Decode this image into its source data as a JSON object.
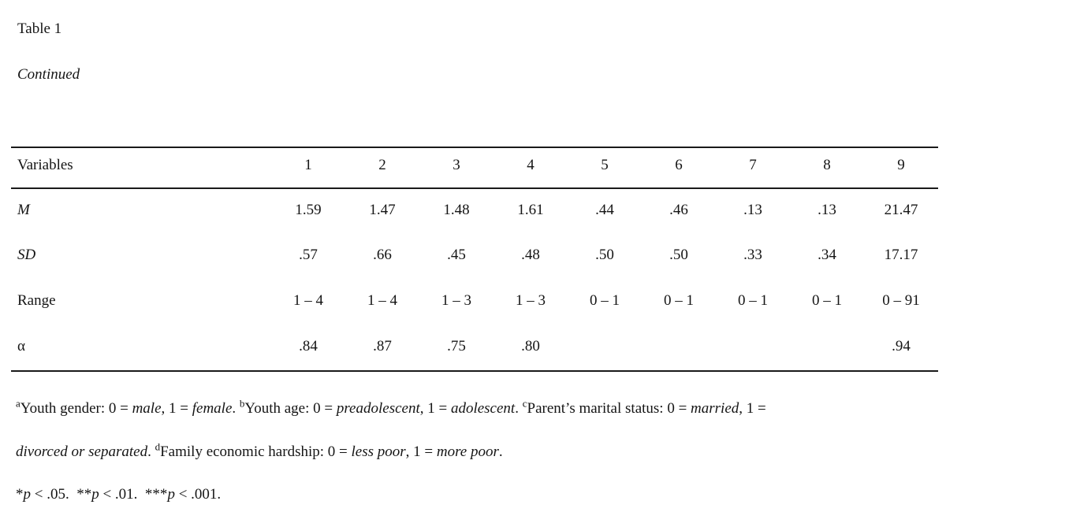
{
  "title": "Table 1",
  "subtitle": "Continued",
  "table": {
    "header": [
      "Variables",
      "1",
      "2",
      "3",
      "4",
      "5",
      "6",
      "7",
      "8",
      "9"
    ],
    "rows": [
      {
        "label": "M",
        "values": [
          "1.59",
          "1.47",
          "1.48",
          "1.61",
          ".44",
          ".46",
          ".13",
          ".13",
          "21.47"
        ]
      },
      {
        "label": "SD",
        "values": [
          ".57",
          ".66",
          ".45",
          ".48",
          ".50",
          ".50",
          ".33",
          ".34",
          "17.17"
        ]
      },
      {
        "label": "Range",
        "values": [
          "1 – 4",
          "1 – 4",
          "1 – 3",
          "1 – 3",
          "0 – 1",
          "0 – 1",
          "0 – 1",
          "0 – 1",
          "0 – 91"
        ]
      },
      {
        "label": "α",
        "values": [
          ".84",
          ".87",
          ".75",
          ".80",
          "",
          "",
          "",
          "",
          ".94"
        ]
      }
    ]
  },
  "footnotes": {
    "line1": {
      "sup_a": "a",
      "t1": "Youth gender: 0 = ",
      "i1": "male",
      "t2": ", 1 = ",
      "i2": "female",
      "t3": ". ",
      "sup_b": "b",
      "t4": "Youth age: 0 = ",
      "i3": "preadolescent",
      "t5": ", 1 = ",
      "i4": "adolescent",
      "t6": ". ",
      "sup_c": "c",
      "t7": "Parent’s marital status: 0 = ",
      "i5": "married",
      "t8": ", 1 ="
    },
    "line2": {
      "i1": "divorced or separated",
      "t1": ". ",
      "sup_d": "d",
      "t2": "Family economic hardship: 0 = ",
      "i2": "less poor",
      "t3": ", 1 = ",
      "i3": "more poor",
      "t4": "."
    },
    "line3": {
      "s1": "*",
      "i1": "p",
      "t1": " < .05.  **",
      "i2": "p",
      "t2": " < .01.  ***",
      "i3": "p",
      "t3": " < .001."
    }
  }
}
